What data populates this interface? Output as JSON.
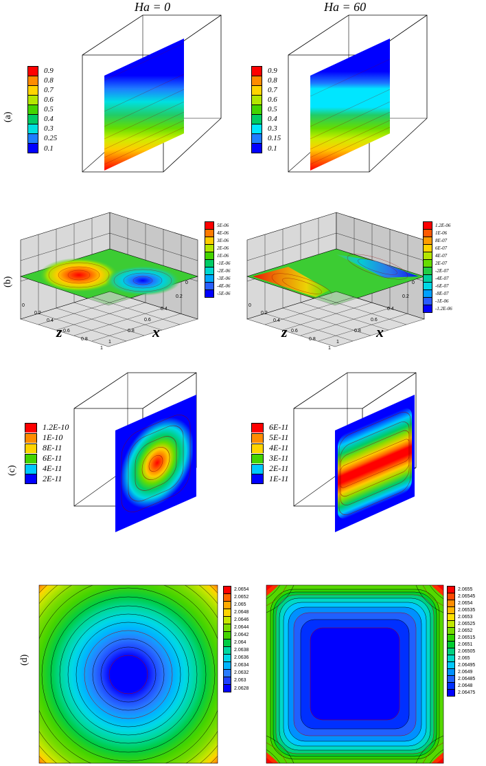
{
  "column_titles": {
    "left": "Ha = 0",
    "right": "Ha = 60"
  },
  "row_labels": {
    "a": "(a)",
    "b": "(b)",
    "c": "(c)",
    "d": "(d)"
  },
  "legends": {
    "a_left": [
      "0.9",
      "0.8",
      "0.7",
      "0.6",
      "0.5",
      "0.4",
      "0.3",
      "0.25",
      "0.1"
    ],
    "a_right": [
      "0.9",
      "0.8",
      "0.7",
      "0.6",
      "0.5",
      "0.4",
      "0.3",
      "0.15",
      "0.1"
    ],
    "b_left": [
      "5E-06",
      "4E-06",
      "3E-06",
      "2E-06",
      "1E-06",
      "-1E-06",
      "-2E-06",
      "-3E-06",
      "-4E-06",
      "-5E-06"
    ],
    "b_right": [
      "1.2E-06",
      "1E-06",
      "8E-07",
      "6E-07",
      "4E-07",
      "2E-07",
      "-2E-07",
      "-4E-07",
      "-6E-07",
      "-8E-07",
      "-1E-06",
      "-1.2E-06"
    ],
    "c_left": [
      "1.2E-10",
      "1E-10",
      "8E-11",
      "6E-11",
      "4E-11",
      "2E-11"
    ],
    "c_right": [
      "6E-11",
      "5E-11",
      "4E-11",
      "3E-11",
      "2E-11",
      "1E-11"
    ],
    "d_left": [
      "2.0654",
      "2.0652",
      "2.065",
      "2.0648",
      "2.0646",
      "2.0644",
      "2.0642",
      "2.064",
      "2.0638",
      "2.0636",
      "2.0634",
      "2.0632",
      "2.063",
      "2.0628"
    ],
    "d_right": [
      "2.0655",
      "2.06545",
      "2.0654",
      "2.06535",
      "2.0653",
      "2.06525",
      "2.0652",
      "2.06515",
      "2.0651",
      "2.06505",
      "2.065",
      "2.06495",
      "2.0649",
      "2.06485",
      "2.0648",
      "2.06475"
    ]
  },
  "axis_letters": {
    "z": "z",
    "x": "x"
  },
  "ticks": {
    "z": [
      "0",
      "0.2",
      "0.4",
      "0.6",
      "0.8",
      "1"
    ],
    "x": [
      "0",
      "0.2",
      "0.4",
      "0.6",
      "0.8",
      "1"
    ]
  },
  "colors": {
    "d_left_edges": [
      "#ff0000",
      "#ff6600",
      "#ffaa00",
      "#ffd400",
      "#c8e600",
      "#7ddc00",
      "#44d400",
      "#00cc44",
      "#00d8a0",
      "#00d8e6",
      "#00b4ff",
      "#2a7cff",
      "#1e40ff",
      "#0000ff"
    ],
    "d_right_edges": [
      "#ff0000",
      "#ff4800",
      "#ff8c00",
      "#ffb400",
      "#ffe000",
      "#c0e800",
      "#78dc00",
      "#30d400",
      "#00cc30",
      "#00d080",
      "#00d8c8",
      "#00c8ff",
      "#0090ff",
      "#2060ff",
      "#0030ff",
      "#0000ff"
    ]
  }
}
